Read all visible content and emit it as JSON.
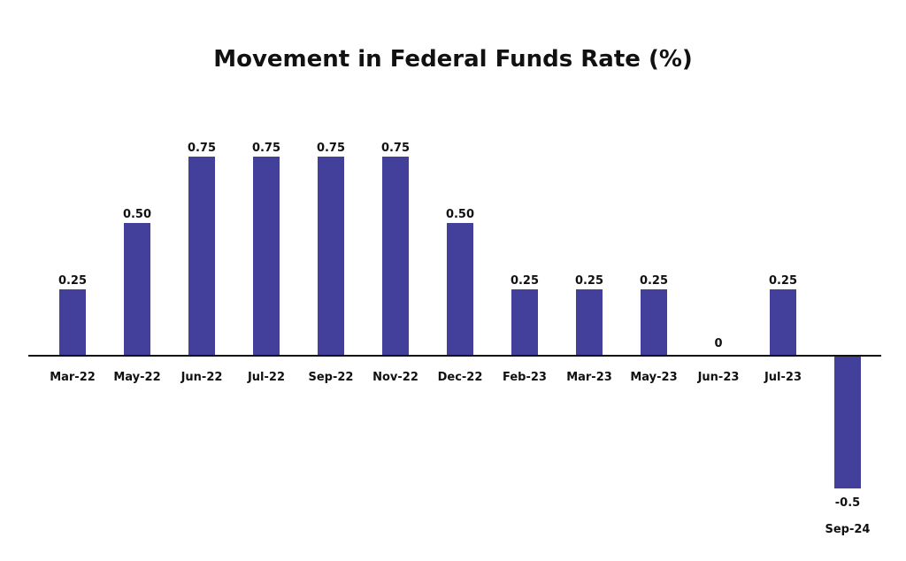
{
  "chart_data": {
    "type": "bar",
    "title": "Movement in Federal Funds Rate (%)",
    "xlabel": "",
    "ylabel": "",
    "categories": [
      "Mar-22",
      "May-22",
      "Jun-22",
      "Jul-22",
      "Sep-22",
      "Nov-22",
      "Dec-22",
      "Feb-23",
      "Mar-23",
      "May-23",
      "Jun-23",
      "Jul-23",
      "Sep-24"
    ],
    "values": [
      0.25,
      0.5,
      0.75,
      0.75,
      0.75,
      0.75,
      0.5,
      0.25,
      0.25,
      0.25,
      0,
      0.25,
      -0.5
    ],
    "value_labels": [
      "0.25",
      "0.50",
      "0.75",
      "0.75",
      "0.75",
      "0.75",
      "0.50",
      "0.25",
      "0.25",
      "0.25",
      "0",
      "0.25",
      "-0.5"
    ],
    "ylim": [
      -0.5,
      0.75
    ],
    "grid": false,
    "legend": "none",
    "bar_color": "#42409a",
    "axis_color": "#111111"
  }
}
